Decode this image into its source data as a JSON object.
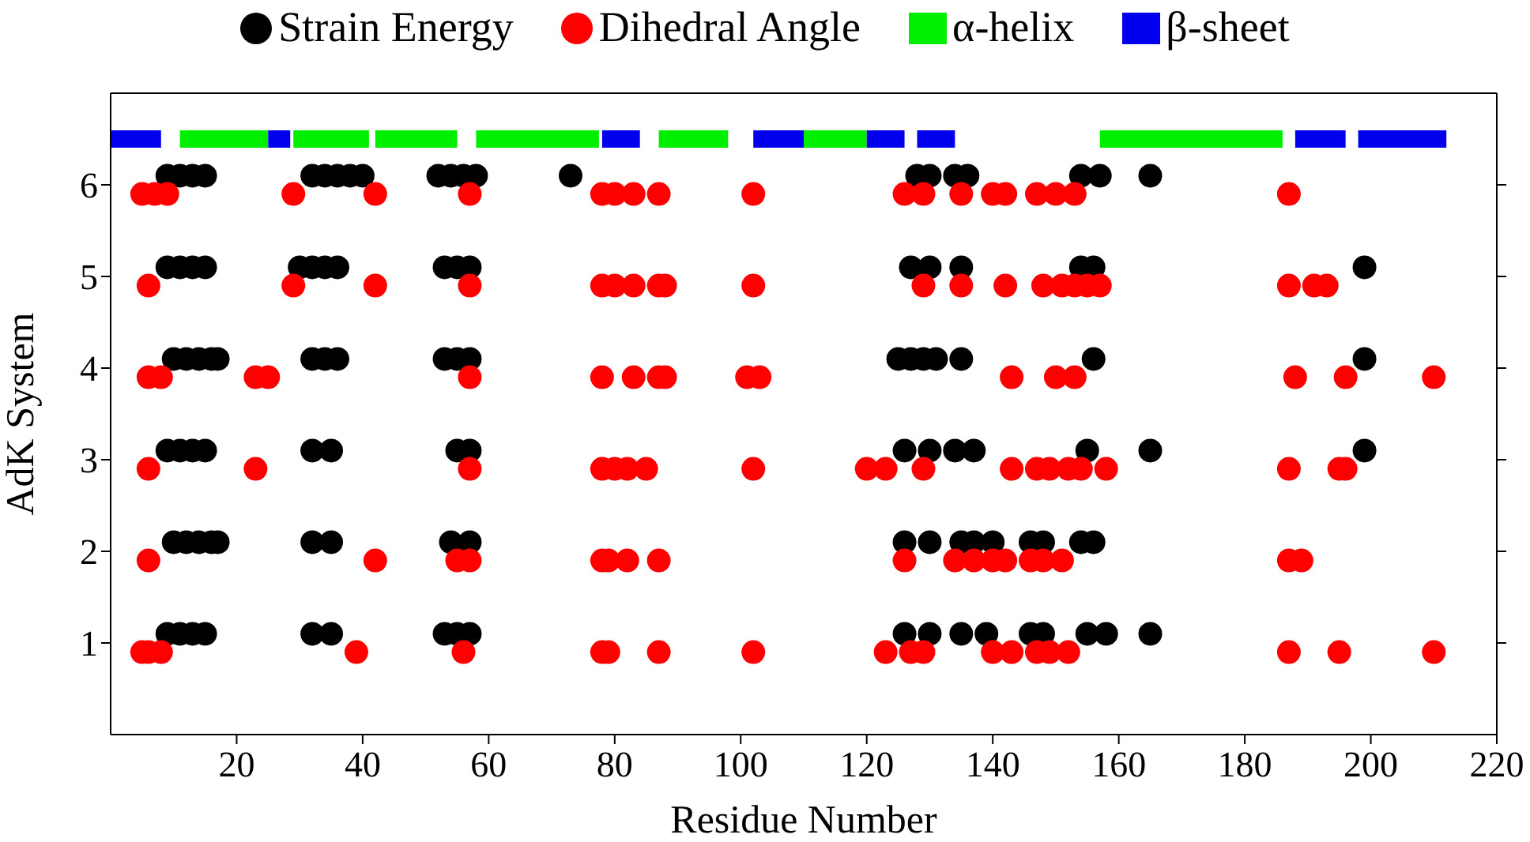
{
  "chart_data": {
    "type": "scatter",
    "xlabel": "Residue Number",
    "ylabel": "AdK System",
    "xlim": [
      0,
      220
    ],
    "xticks": [
      20,
      40,
      60,
      80,
      100,
      120,
      140,
      160,
      180,
      200,
      220
    ],
    "ylim": [
      0,
      7
    ],
    "yticks": [
      1,
      2,
      3,
      4,
      5,
      6
    ],
    "grid": false,
    "legend": "top",
    "marker": "circle",
    "series": [
      {
        "name": "Strain Energy",
        "color": "#000000",
        "x": [
          9,
          11,
          13,
          15,
          32,
          34,
          36,
          38,
          40,
          52,
          54,
          56,
          58,
          73,
          128,
          130,
          134,
          136,
          154,
          157,
          165,
          9,
          11,
          13,
          15,
          30,
          32,
          34,
          36,
          53,
          55,
          57,
          127,
          130,
          135,
          154,
          156,
          199,
          10,
          12,
          14,
          16,
          17,
          32,
          34,
          36,
          53,
          55,
          57,
          125,
          127,
          129,
          131,
          135,
          156,
          199,
          9,
          11,
          13,
          15,
          32,
          35,
          55,
          57,
          126,
          130,
          134,
          137,
          155,
          165,
          199,
          10,
          12,
          14,
          16,
          17,
          32,
          35,
          54,
          57,
          126,
          130,
          135,
          137,
          140,
          146,
          148,
          154,
          156,
          9,
          11,
          13,
          15,
          32,
          35,
          53,
          55,
          57,
          126,
          130,
          135,
          139,
          146,
          148,
          155,
          158,
          165
        ],
        "values": [
          6.1,
          6.1,
          6.1,
          6.1,
          6.1,
          6.1,
          6.1,
          6.1,
          6.1,
          6.1,
          6.1,
          6.1,
          6.1,
          6.1,
          6.1,
          6.1,
          6.1,
          6.1,
          6.1,
          6.1,
          6.1,
          5.1,
          5.1,
          5.1,
          5.1,
          5.1,
          5.1,
          5.1,
          5.1,
          5.1,
          5.1,
          5.1,
          5.1,
          5.1,
          5.1,
          5.1,
          5.1,
          5.1,
          4.1,
          4.1,
          4.1,
          4.1,
          4.1,
          4.1,
          4.1,
          4.1,
          4.1,
          4.1,
          4.1,
          4.1,
          4.1,
          4.1,
          4.1,
          4.1,
          4.1,
          4.1,
          3.1,
          3.1,
          3.1,
          3.1,
          3.1,
          3.1,
          3.1,
          3.1,
          3.1,
          3.1,
          3.1,
          3.1,
          3.1,
          3.1,
          3.1,
          2.1,
          2.1,
          2.1,
          2.1,
          2.1,
          2.1,
          2.1,
          2.1,
          2.1,
          2.1,
          2.1,
          2.1,
          2.1,
          2.1,
          2.1,
          2.1,
          2.1,
          2.1,
          1.1,
          1.1,
          1.1,
          1.1,
          1.1,
          1.1,
          1.1,
          1.1,
          1.1,
          1.1,
          1.1,
          1.1,
          1.1,
          1.1,
          1.1,
          1.1,
          1.1,
          1.1
        ]
      },
      {
        "name": "Dihedral Angle",
        "color": "#ff0000",
        "x": [
          5,
          7,
          9,
          29,
          42,
          57,
          78,
          80,
          83,
          87,
          102,
          126,
          129,
          135,
          140,
          142,
          147,
          150,
          153,
          187,
          6,
          29,
          42,
          57,
          78,
          80,
          83,
          87,
          88,
          102,
          129,
          135,
          142,
          148,
          151,
          153,
          155,
          157,
          187,
          191,
          193,
          6,
          8,
          23,
          25,
          57,
          78,
          83,
          87,
          88,
          101,
          103,
          143,
          150,
          153,
          188,
          196,
          210,
          6,
          23,
          57,
          78,
          80,
          82,
          85,
          102,
          120,
          123,
          129,
          143,
          147,
          149,
          152,
          154,
          158,
          187,
          195,
          196,
          6,
          42,
          55,
          57,
          78,
          79,
          82,
          87,
          126,
          134,
          137,
          140,
          142,
          146,
          148,
          151,
          187,
          189,
          5,
          6,
          8,
          39,
          56,
          78,
          79,
          87,
          102,
          123,
          127,
          129,
          140,
          143,
          147,
          149,
          152,
          187,
          195,
          210
        ],
        "values": [
          5.9,
          5.9,
          5.9,
          5.9,
          5.9,
          5.9,
          5.9,
          5.9,
          5.9,
          5.9,
          5.9,
          5.9,
          5.9,
          5.9,
          5.9,
          5.9,
          5.9,
          5.9,
          5.9,
          5.9,
          4.9,
          4.9,
          4.9,
          4.9,
          4.9,
          4.9,
          4.9,
          4.9,
          4.9,
          4.9,
          4.9,
          4.9,
          4.9,
          4.9,
          4.9,
          4.9,
          4.9,
          4.9,
          4.9,
          4.9,
          4.9,
          3.9,
          3.9,
          3.9,
          3.9,
          3.9,
          3.9,
          3.9,
          3.9,
          3.9,
          3.9,
          3.9,
          3.9,
          3.9,
          3.9,
          3.9,
          3.9,
          3.9,
          2.9,
          2.9,
          2.9,
          2.9,
          2.9,
          2.9,
          2.9,
          2.9,
          2.9,
          2.9,
          2.9,
          2.9,
          2.9,
          2.9,
          2.9,
          2.9,
          2.9,
          2.9,
          2.9,
          2.9,
          1.9,
          1.9,
          1.9,
          1.9,
          1.9,
          1.9,
          1.9,
          1.9,
          1.9,
          1.9,
          1.9,
          1.9,
          1.9,
          1.9,
          1.9,
          1.9,
          1.9,
          1.9,
          0.9,
          0.9,
          0.9,
          0.9,
          0.9,
          0.9,
          0.9,
          0.9,
          0.9,
          0.9,
          0.9,
          0.9,
          0.9,
          0.9,
          0.9,
          0.9,
          0.9,
          0.9,
          0.9,
          0.9
        ]
      },
      {
        "name": "α-helix",
        "type": "line",
        "marker": "none",
        "color": "#00ee00",
        "x": [
          11,
          25
        ],
        "values": [
          6.5,
          6.5
        ]
      },
      {
        "type": "line",
        "marker": "none",
        "color": "#00ee00",
        "x": [
          29,
          41
        ],
        "values": [
          6.5,
          6.5
        ]
      },
      {
        "type": "line",
        "marker": "none",
        "color": "#00ee00",
        "x": [
          42,
          55
        ],
        "values": [
          6.5,
          6.5
        ]
      },
      {
        "type": "line",
        "marker": "none",
        "color": "#00ee00",
        "x": [
          58,
          77.5
        ],
        "values": [
          6.5,
          6.5
        ]
      },
      {
        "type": "line",
        "marker": "none",
        "color": "#00ee00",
        "x": [
          87,
          98
        ],
        "values": [
          6.5,
          6.5
        ]
      },
      {
        "type": "line",
        "marker": "none",
        "color": "#00ee00",
        "x": [
          110,
          120
        ],
        "values": [
          6.5,
          6.5
        ]
      },
      {
        "type": "line",
        "marker": "none",
        "color": "#00ee00",
        "x": [
          157,
          186
        ],
        "values": [
          6.5,
          6.5
        ]
      },
      {
        "name": "β-sheet",
        "type": "line",
        "marker": "none",
        "color": "#0000ee",
        "x": [
          0,
          8
        ],
        "values": [
          6.5,
          6.5
        ]
      },
      {
        "type": "line",
        "marker": "none",
        "color": "#0000ee",
        "x": [
          25,
          28.5
        ],
        "values": [
          6.5,
          6.5
        ]
      },
      {
        "type": "line",
        "marker": "none",
        "color": "#0000ee",
        "x": [
          78,
          84
        ],
        "values": [
          6.5,
          6.5
        ]
      },
      {
        "type": "line",
        "marker": "none",
        "color": "#0000ee",
        "x": [
          102,
          110
        ],
        "values": [
          6.5,
          6.5
        ]
      },
      {
        "type": "line",
        "marker": "none",
        "color": "#0000ee",
        "x": [
          120,
          126
        ],
        "values": [
          6.5,
          6.5
        ]
      },
      {
        "type": "line",
        "marker": "none",
        "color": "#0000ee",
        "x": [
          128,
          134
        ],
        "values": [
          6.5,
          6.5
        ]
      },
      {
        "type": "line",
        "marker": "none",
        "color": "#0000ee",
        "x": [
          188,
          196
        ],
        "values": [
          6.5,
          6.5
        ]
      },
      {
        "type": "line",
        "marker": "none",
        "color": "#0000ee",
        "x": [
          198,
          212
        ],
        "values": [
          6.5,
          6.5
        ]
      }
    ]
  }
}
